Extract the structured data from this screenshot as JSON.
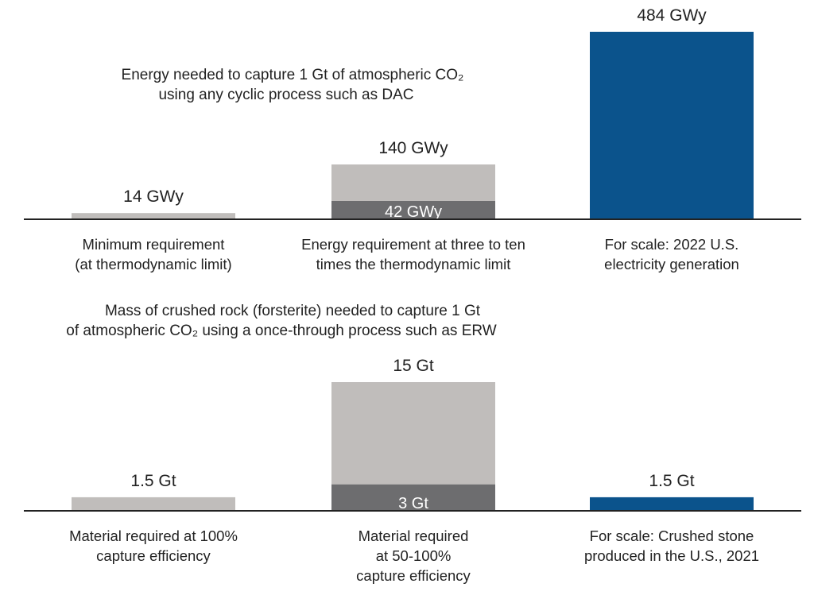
{
  "chart_data": [
    {
      "type": "bar",
      "title_lines": [
        "Energy needed to capture 1 Gt of atmospheric CO₂",
        "using any cyclic process such as DAC"
      ],
      "unit": "GWy",
      "categories": [
        [
          "Minimum requirement",
          "(at thermodynamic limit)"
        ],
        [
          "Energy requirement at three to ten",
          "times the thermodynamic limit"
        ],
        [
          "For scale: 2022 U.S.",
          "electricity generation"
        ]
      ],
      "bars": [
        {
          "value": 14,
          "label": "14 GWy",
          "color": "#c0bdbb"
        },
        {
          "low": 42,
          "low_label": "42 GWy",
          "high": 140,
          "label": "140 GWy",
          "color": "#c0bdbb",
          "low_color": "#6d6d6f"
        },
        {
          "value": 484,
          "label": "484 GWy",
          "color": "#0b538c"
        }
      ],
      "ylim": [
        0,
        484
      ]
    },
    {
      "type": "bar",
      "title_lines": [
        "Mass of crushed rock (forsterite) needed to capture 1 Gt",
        "of atmospheric CO₂ using a once-through process such as ERW"
      ],
      "unit": "Gt",
      "categories": [
        [
          "Material required at 100%",
          "capture efficiency"
        ],
        [
          "Material required",
          "at 50-100%",
          "capture efficiency"
        ],
        [
          "For scale: Crushed stone",
          "produced in the U.S., 2021"
        ]
      ],
      "bars": [
        {
          "value": 1.5,
          "label": "1.5 Gt",
          "color": "#c0bdbb"
        },
        {
          "low": 3,
          "low_label": "3 Gt",
          "high": 15,
          "label": "15 Gt",
          "color": "#c0bdbb",
          "low_color": "#6d6d6f"
        },
        {
          "value": 1.5,
          "label": "1.5 Gt",
          "color": "#0b538c"
        }
      ],
      "ylim": [
        0,
        15
      ]
    }
  ]
}
